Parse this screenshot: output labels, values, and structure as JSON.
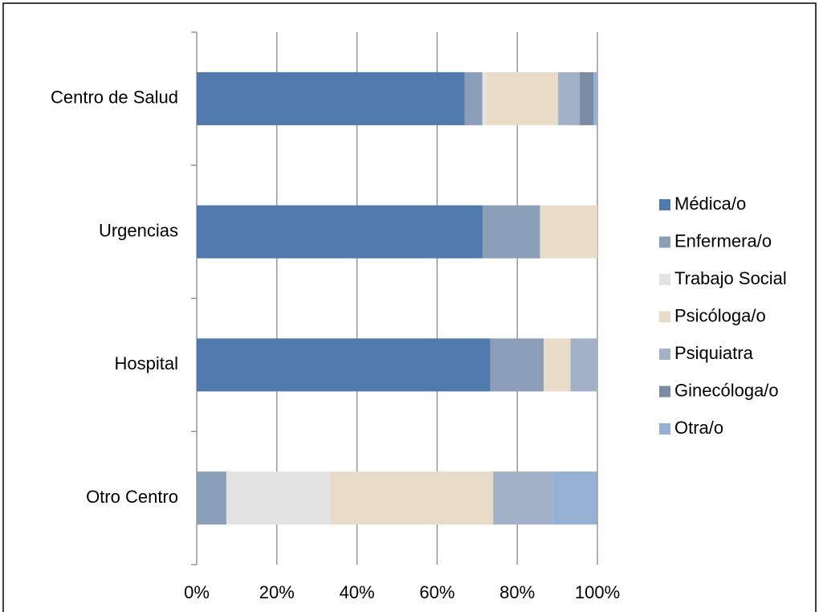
{
  "chart_data": {
    "type": "stacked_bar_horizontal",
    "categories": [
      "Centro de Salud",
      "Urgencias",
      "Hospital",
      "Otro Centro"
    ],
    "series": [
      {
        "name": "Médica/o",
        "color": "#4f7aab",
        "values": [
          66.9,
          71.4,
          73.3,
          0
        ]
      },
      {
        "name": "Enfermera/o",
        "color": "#8a9fb7",
        "values": [
          4.4,
          14.3,
          13.3,
          7.4
        ]
      },
      {
        "name": "Trabajo Social",
        "color": "#e3e3e3",
        "values": [
          1.0,
          0,
          0,
          25.9
        ]
      },
      {
        "name": "Psicóloga/o",
        "color": "#e8dcc8",
        "values": [
          17.9,
          14.3,
          6.7,
          40.7
        ]
      },
      {
        "name": "Psiquiatra",
        "color": "#a2b1c6",
        "values": [
          5.4,
          0,
          6.7,
          14.8
        ]
      },
      {
        "name": "Ginecóloga/o",
        "color": "#7a8ca3",
        "values": [
          3.4,
          0,
          0,
          0
        ]
      },
      {
        "name": "Otra/o",
        "color": "#97b1d4",
        "values": [
          1.0,
          0,
          0,
          11.1
        ]
      }
    ],
    "xlim": [
      0,
      100
    ],
    "xticks": [
      {
        "value": 0,
        "label": "0%"
      },
      {
        "value": 20,
        "label": "20%"
      },
      {
        "value": 40,
        "label": "40%"
      },
      {
        "value": 60,
        "label": "60%"
      },
      {
        "value": 80,
        "label": "80%"
      },
      {
        "value": 100,
        "label": "100%"
      }
    ],
    "grid": true,
    "legend": "right"
  }
}
